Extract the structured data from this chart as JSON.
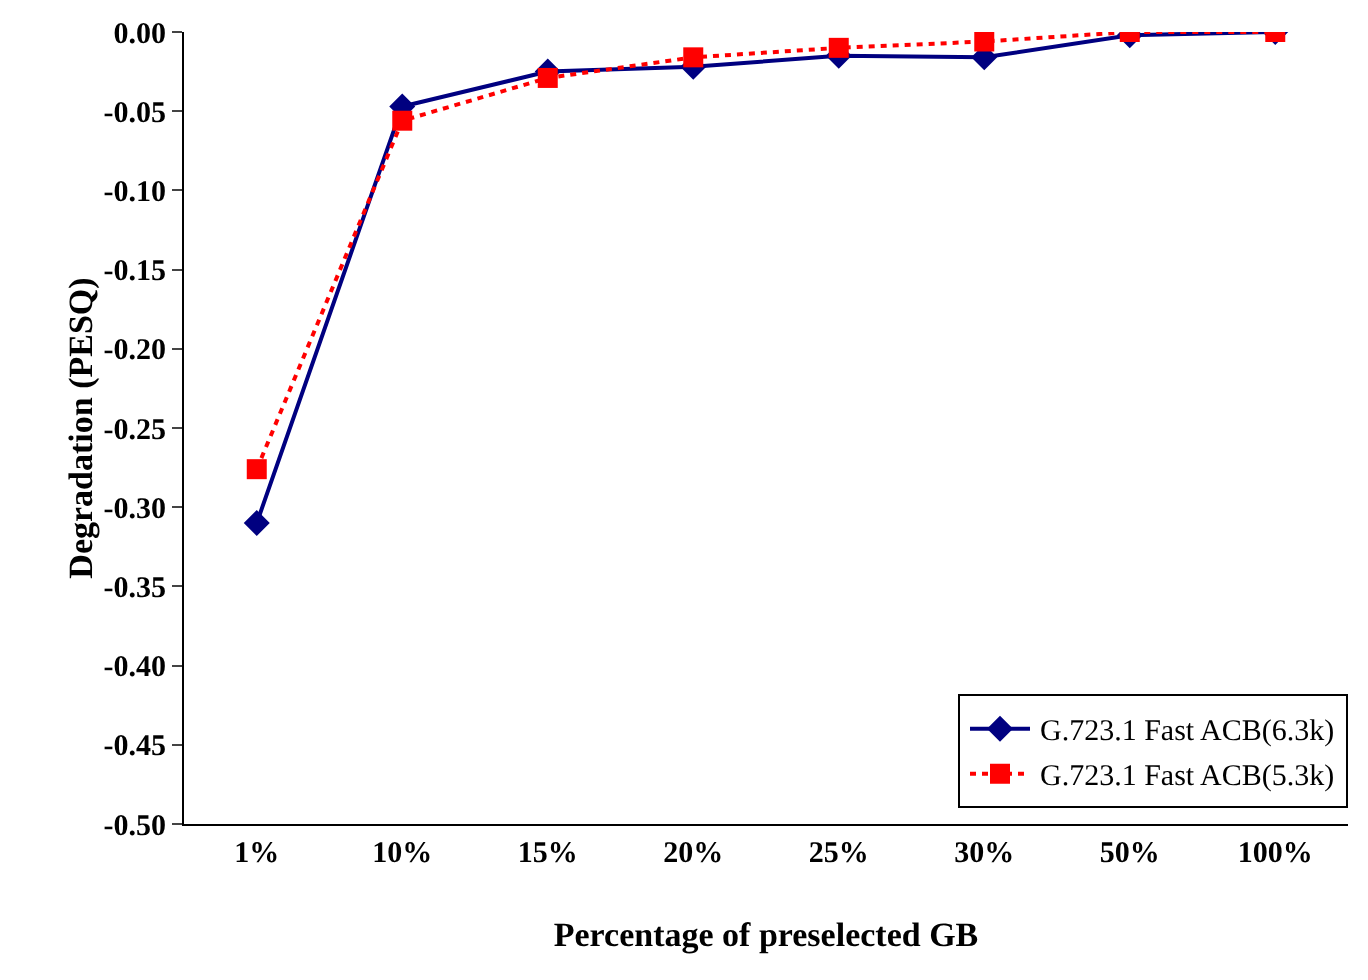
{
  "chart_data": {
    "type": "line",
    "xlabel": "Percentage of preselected GB",
    "ylabel": "Degradation (PESQ)",
    "categories": [
      "1%",
      "10%",
      "15%",
      "20%",
      "25%",
      "30%",
      "50%",
      "100%"
    ],
    "series": [
      {
        "name": "G.723.1 Fast ACB(6.3k)",
        "color": "#000080",
        "marker": "diamond",
        "line_style": "solid",
        "values": [
          -0.31,
          -0.047,
          -0.025,
          -0.022,
          -0.015,
          -0.016,
          -0.002,
          0
        ]
      },
      {
        "name": "G.723.1 Fast ACB(5.3k)",
        "color": "#ff0000",
        "marker": "square",
        "line_style": "dotted",
        "values": [
          -0.276,
          -0.056,
          -0.029,
          -0.016,
          -0.01,
          -0.006,
          0,
          0
        ]
      }
    ],
    "ylim": [
      -0.5,
      0
    ],
    "yticks": [
      {
        "value": -0.5,
        "label": "-0.50"
      },
      {
        "value": -0.45,
        "label": "-0.45"
      },
      {
        "value": -0.4,
        "label": "-0.40"
      },
      {
        "value": -0.35,
        "label": "-0.35"
      },
      {
        "value": -0.3,
        "label": "-0.30"
      },
      {
        "value": -0.25,
        "label": "-0.25"
      },
      {
        "value": -0.2,
        "label": "-0.20"
      },
      {
        "value": -0.15,
        "label": "-0.15"
      },
      {
        "value": -0.1,
        "label": "-0.10"
      },
      {
        "value": -0.05,
        "label": "-0.05"
      },
      {
        "value": 0,
        "label": "0.00"
      }
    ],
    "grid": false,
    "legend": "bottom right"
  }
}
